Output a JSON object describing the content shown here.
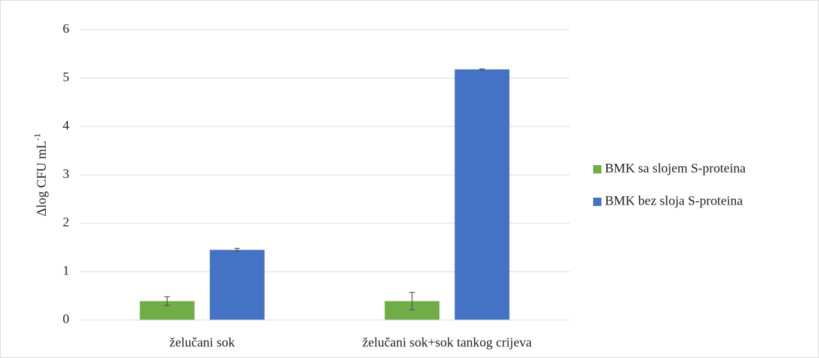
{
  "chart_data": {
    "type": "bar",
    "ylabel": "Δlog CFU mL",
    "ylabel_sup": "-1",
    "categories": [
      "želučani sok",
      "želučani sok+sok tankog crijeva"
    ],
    "series": [
      {
        "name": "BMK sa slojem S-proteina",
        "color": "#70ad47",
        "values": [
          0.39,
          0.39
        ],
        "errors": [
          0.09,
          0.18
        ]
      },
      {
        "name": "BMK bez sloja S-proteina",
        "color": "#4472c4",
        "values": [
          1.45,
          5.18
        ],
        "errors": [
          0.03,
          0.01
        ]
      }
    ],
    "ylim": [
      0,
      6
    ],
    "yticks": [
      0,
      1,
      2,
      3,
      4,
      5,
      6
    ],
    "grid": true,
    "legend": "right"
  }
}
